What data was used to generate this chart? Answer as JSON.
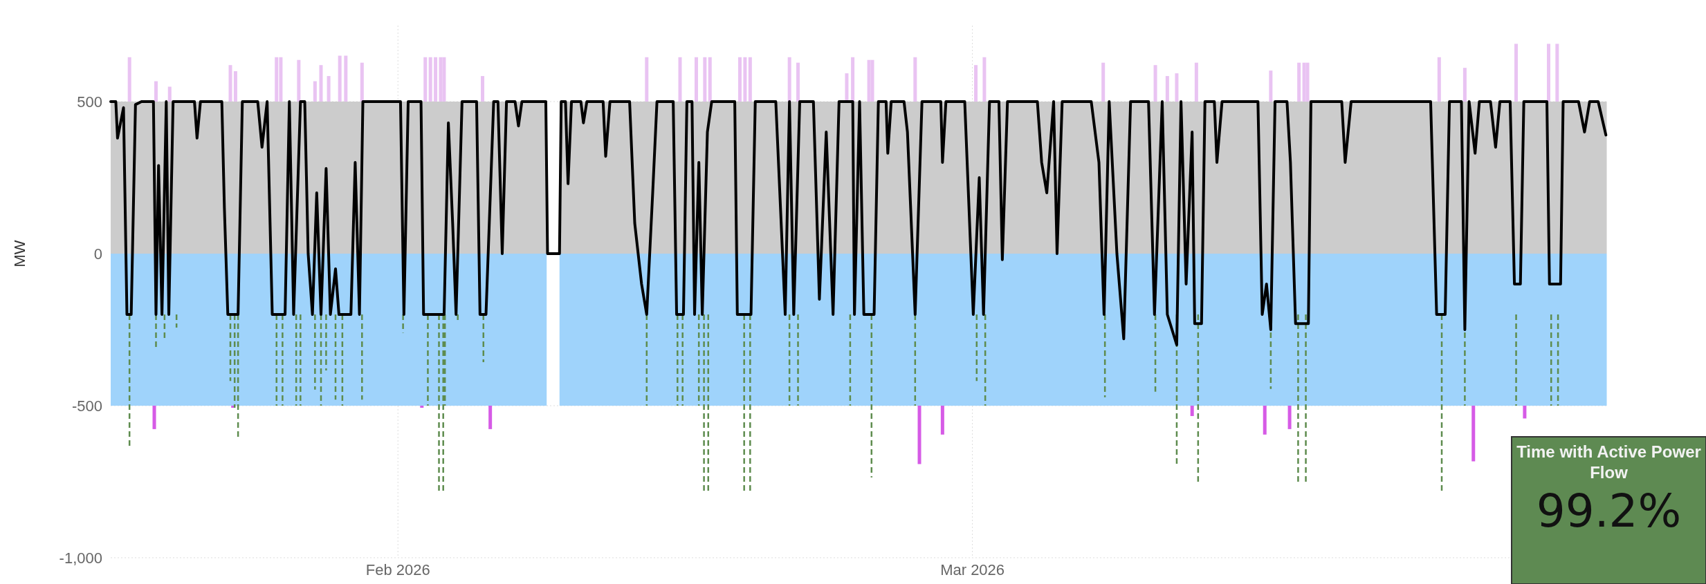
{
  "chart_data": [
    {
      "type": "line",
      "ylabel": "MW",
      "xlim": [
        "2026-01-18",
        "2026-04-01"
      ],
      "xticks": [
        {
          "value": "2026-02-01",
          "label": "Feb 2026"
        },
        {
          "value": "2026-03-01",
          "label": "Mar 2026"
        }
      ],
      "ylim": [
        -1000,
        750
      ],
      "yticks": [
        500,
        0,
        {
          "value": -500,
          "label": "-500"
        },
        {
          "value": -1000,
          "label": "-1,000"
        }
      ],
      "grid": true,
      "series": [
        {
          "type": "bar",
          "color": "#e9c3f2",
          "x": [
            "2026-01-18T22:00",
            "2026-01-20T05:00",
            "2026-01-20T21:00",
            "2026-01-23T20:00",
            "2026-01-24T02:00",
            "2026-01-26T02:00",
            "2026-01-26T07:00",
            "2026-01-27T04:00",
            "2026-01-27T23:00",
            "2026-01-28T06:00",
            "2026-01-28T15:00",
            "2026-01-29T04:00",
            "2026-01-29T11:00",
            "2026-01-30T06:00",
            "2026-02-02T08:00",
            "2026-02-02T14:00",
            "2026-02-02T20:00",
            "2026-02-03T02:00",
            "2026-02-03T06:00",
            "2026-02-05T03:00",
            "2026-02-13T03:00",
            "2026-02-14T18:00",
            "2026-02-15T13:00",
            "2026-02-15T23:00",
            "2026-02-16T05:00",
            "2026-02-17T16:00",
            "2026-02-17T22:00",
            "2026-02-18T04:00",
            "2026-02-20T02:00",
            "2026-02-20T12:00",
            "2026-02-22T21:00",
            "2026-02-23T04:00",
            "2026-02-23T23:00",
            "2026-02-24T03:00",
            "2026-02-26T05:00",
            "2026-03-01T04:00",
            "2026-03-01T14:00",
            "2026-03-07T09:00",
            "2026-03-09T22:00",
            "2026-03-10T12:00",
            "2026-03-10T23:00",
            "2026-03-11T22:00",
            "2026-03-15T13:00",
            "2026-03-16T22:00",
            "2026-03-17T04:00",
            "2026-03-17T08:00",
            "2026-03-23T18:00",
            "2026-03-25T00:00",
            "2026-03-27T12:00",
            "2026-03-29T02:00",
            "2026-03-29T12:00"
          ],
          "base": [
            500,
            500,
            500,
            500,
            500,
            500,
            500,
            500,
            500,
            500,
            500,
            500,
            500,
            500,
            500,
            500,
            500,
            500,
            500,
            500,
            500,
            500,
            500,
            500,
            500,
            500,
            500,
            500,
            500,
            500,
            500,
            500,
            500,
            500,
            500,
            500,
            500,
            500,
            500,
            500,
            500,
            500,
            500,
            500,
            500,
            500,
            500,
            500,
            500,
            500,
            500
          ],
          "values": [
            146,
            67,
            49,
            120,
            100,
            146,
            146,
            137,
            67,
            120,
            84,
            151,
            151,
            128,
            146,
            146,
            146,
            146,
            146,
            84,
            146,
            146,
            146,
            146,
            146,
            146,
            146,
            146,
            146,
            128,
            93,
            146,
            137,
            137,
            146,
            120,
            146,
            128,
            120,
            84,
            93,
            128,
            102,
            128,
            128,
            128,
            146,
            111,
            190,
            190,
            190
          ]
        },
        {
          "type": "bar",
          "color": "#d65be6",
          "x": [
            "2026-01-20T03:00",
            "2026-01-23T23:00",
            "2026-02-02T04:00",
            "2026-02-05T12:00",
            "2026-02-26T10:00",
            "2026-02-27T13:00",
            "2026-03-11T17:00",
            "2026-03-15T06:00",
            "2026-03-16T11:00",
            "2026-03-25T10:00",
            "2026-03-27T22:00"
          ],
          "base": [
            -500,
            -500,
            -500,
            -500,
            -500,
            -500,
            -500,
            -500,
            -500,
            -500,
            -500
          ],
          "values": [
            -77,
            -7,
            -7,
            -77,
            -192,
            -95,
            -34,
            -95,
            -77,
            -183,
            -42
          ]
        },
        {
          "type": "area",
          "color": "#cccccc",
          "x": [
            "2026-01-18T00:00",
            "2026-02-08T06:00",
            "2026-02-08T14:00",
            "2026-02-08T21:00",
            "2026-03-31T22:00"
          ],
          "values": [
            500,
            500,
            null,
            500,
            500
          ]
        },
        {
          "type": "area",
          "color": "#9fd3fb",
          "x": [
            "2026-01-18T00:00",
            "2026-02-08T06:00",
            "2026-02-08T14:00",
            "2026-02-08T21:00",
            "2026-03-31T22:00"
          ],
          "values": [
            -500,
            -500,
            null,
            -500,
            -500
          ]
        },
        {
          "type": "line",
          "color": "#5e8c4e",
          "line_style": "dashed",
          "x": [
            "2026-01-18T22:00",
            "2026-01-18T22:00",
            "2026-01-19T12:00",
            "2026-01-20T05:00",
            "2026-01-20T05:00",
            "2026-01-20T10:00",
            "2026-01-20T15:00",
            "2026-01-20T15:00",
            "2026-01-21T00:00",
            "2026-01-21T05:00",
            "2026-01-21T05:00",
            "2026-01-22T00:00",
            "2026-01-23T20:00",
            "2026-01-23T20:00",
            "2026-01-23T22:00",
            "2026-01-24T01:00",
            "2026-01-24T01:00",
            "2026-01-24T03:00",
            "2026-01-24T05:00",
            "2026-01-24T05:00",
            "2026-01-25T00:00",
            "2026-01-26T02:00",
            "2026-01-26T02:00",
            "2026-01-26T05:00",
            "2026-01-26T09:00",
            "2026-01-26T09:00",
            "2026-01-26T20:00",
            "2026-01-27T01:00",
            "2026-01-27T01:00",
            "2026-01-27T03:00",
            "2026-01-27T06:00",
            "2026-01-27T06:00",
            "2026-01-27T15:00",
            "2026-01-27T23:00",
            "2026-01-27T23:00",
            "2026-01-28T03:00",
            "2026-01-28T06:00",
            "2026-01-28T06:00",
            "2026-01-28T09:00",
            "2026-01-28T12:00",
            "2026-01-28T12:00",
            "2026-01-28T18:00",
            "2026-01-28T23:00",
            "2026-01-28T23:00",
            "2026-01-29T03:00",
            "2026-01-29T07:00",
            "2026-01-29T07:00",
            "2026-01-29T20:00",
            "2026-01-30T06:00",
            "2026-01-30T06:00",
            "2026-01-31T00:00",
            "2026-02-01T06:00",
            "2026-02-01T06:00",
            "2026-02-02T00:00",
            "2026-02-02T11:00",
            "2026-02-02T11:00",
            "2026-02-02T18:00",
            "2026-02-03T00:00",
            "2026-02-03T00:00",
            "2026-02-03T03:00",
            "2026-02-03T05:00",
            "2026-02-03T05:00",
            "2026-02-03T06:00",
            "2026-02-03T07:00",
            "2026-02-03T07:00",
            "2026-02-03T15:00",
            "2026-02-03T22:00",
            "2026-02-03T22:00",
            "2026-02-04T12:00",
            "2026-02-05T04:00",
            "2026-02-05T04:00",
            "2026-02-10T00:00",
            "2026-02-13T03:00",
            "2026-02-13T03:00",
            "2026-02-14T00:00",
            "2026-02-14T15:00",
            "2026-02-14T15:00",
            "2026-02-14T18:00",
            "2026-02-14T21:00",
            "2026-02-14T21:00",
            "2026-02-15T12:00",
            "2026-02-15T16:00",
            "2026-02-15T16:00",
            "2026-02-15T19:00",
            "2026-02-15T22:00",
            "2026-02-15T22:00",
            "2026-02-16T01:00",
            "2026-02-16T03:00",
            "2026-02-16T03:00",
            "2026-02-17T00:00",
            "2026-02-17T21:00",
            "2026-02-17T21:00",
            "2026-02-18T01:00",
            "2026-02-18T04:00",
            "2026-02-18T04:00",
            "2026-02-19T00:00",
            "2026-02-20T02:00",
            "2026-02-20T02:00",
            "2026-02-20T07:00",
            "2026-02-20T12:00",
            "2026-02-20T12:00",
            "2026-02-22T00:00",
            "2026-02-23T01:00",
            "2026-02-23T01:00",
            "2026-02-23T12:00",
            "2026-02-24T02:00",
            "2026-02-24T02:00",
            "2026-02-25T00:00",
            "2026-02-26T05:00",
            "2026-02-26T05:00",
            "2026-02-28T00:00",
            "2026-03-01T05:00",
            "2026-03-01T05:00",
            "2026-03-01T10:00",
            "2026-03-01T15:00",
            "2026-03-01T15:00",
            "2026-03-05T00:00",
            "2026-03-07T11:00",
            "2026-03-07T11:00",
            "2026-03-09T00:00",
            "2026-03-09T22:00",
            "2026-03-09T22:00",
            "2026-03-10T12:00",
            "2026-03-10T23:00",
            "2026-03-10T23:00",
            "2026-03-11T12:00",
            "2026-03-12T00:00",
            "2026-03-12T00:00",
            "2026-03-14T00:00",
            "2026-03-15T13:00",
            "2026-03-15T13:00",
            "2026-03-16T12:00",
            "2026-03-16T21:00",
            "2026-03-16T21:00",
            "2026-03-17T01:00",
            "2026-03-17T06:00",
            "2026-03-17T06:00",
            "2026-03-20T00:00",
            "2026-03-23T21:00",
            "2026-03-23T21:00",
            "2026-03-24T12:00",
            "2026-03-25T00:00",
            "2026-03-25T00:00",
            "2026-03-26T00:00",
            "2026-03-27T12:00",
            "2026-03-27T12:00",
            "2026-03-28T12:00",
            "2026-03-29T05:00",
            "2026-03-29T05:00",
            "2026-03-29T09:00",
            "2026-03-29T13:00",
            "2026-03-29T13:00"
          ],
          "values": [
            -200,
            -639,
            null,
            -200,
            -313,
            null,
            -200,
            -278,
            null,
            -200,
            -243,
            null,
            -200,
            -419,
            null,
            -200,
            -507,
            null,
            -200,
            -613,
            null,
            -200,
            -500,
            null,
            -200,
            -500,
            null,
            -200,
            -500,
            null,
            -200,
            -500,
            null,
            -200,
            -447,
            null,
            -200,
            -500,
            null,
            -200,
            -384,
            null,
            -200,
            -480,
            null,
            -200,
            -500,
            null,
            -200,
            -480,
            null,
            -200,
            -260,
            null,
            -200,
            -500,
            null,
            -200,
            -789,
            null,
            -200,
            -780,
            null,
            -200,
            -500,
            null,
            -200,
            -225,
            null,
            -200,
            -357,
            null,
            -200,
            -500,
            null,
            -200,
            -500,
            null,
            -200,
            -500,
            null,
            -200,
            -500,
            null,
            -200,
            -780,
            null,
            -200,
            -789,
            null,
            -200,
            -780,
            null,
            -200,
            -780,
            null,
            -200,
            -500,
            null,
            -200,
            -500,
            null,
            -200,
            -500,
            null,
            -200,
            -736,
            null,
            -200,
            -500,
            null,
            -200,
            -419,
            null,
            -200,
            -500,
            null,
            -200,
            -472,
            null,
            -200,
            -454,
            null,
            -200,
            -692,
            null,
            -200,
            -754,
            null,
            -200,
            -445,
            null,
            -200,
            -754,
            null,
            -200,
            -754,
            null,
            -200,
            -789,
            null,
            -200,
            -500,
            null,
            -200,
            -500,
            null,
            -200,
            -500,
            null,
            -200,
            -500
          ]
        },
        {
          "type": "line",
          "color": "#000000",
          "line_style": "solid",
          "x": [
            "2026-01-18T00:00",
            "2026-01-18T06:00",
            "2026-01-18T08:00",
            "2026-01-18T15:00",
            "2026-01-18T19:00",
            "2026-01-19T00:00",
            "2026-01-19T05:00",
            "2026-01-19T12:00",
            "2026-01-20T02:00",
            "2026-01-20T05:00",
            "2026-01-20T08:00",
            "2026-01-20T12:00",
            "2026-01-20T17:00",
            "2026-01-20T20:00",
            "2026-01-21T01:00",
            "2026-01-22T02:00",
            "2026-01-22T05:00",
            "2026-01-22T09:00",
            "2026-01-23T10:00",
            "2026-01-23T13:00",
            "2026-01-23T17:00",
            "2026-01-24T05:00",
            "2026-01-24T10:00",
            "2026-01-25T04:00",
            "2026-01-25T09:00",
            "2026-01-25T15:00",
            "2026-01-25T21:00",
            "2026-01-26T12:00",
            "2026-01-26T17:00",
            "2026-01-26T22:00",
            "2026-01-27T06:00",
            "2026-01-27T11:00",
            "2026-01-27T15:00",
            "2026-01-27T20:00",
            "2026-01-28T01:00",
            "2026-01-28T06:00",
            "2026-01-28T12:00",
            "2026-01-28T17:00",
            "2026-01-28T23:00",
            "2026-01-29T03:00",
            "2026-01-29T17:00",
            "2026-01-29T22:00",
            "2026-01-30T03:00",
            "2026-01-30T07:00",
            "2026-02-01T03:00",
            "2026-02-01T07:00",
            "2026-02-01T12:00",
            "2026-02-02T03:00",
            "2026-02-02T06:00",
            "2026-02-03T06:00",
            "2026-02-03T11:00",
            "2026-02-03T16:00",
            "2026-02-03T20:00",
            "2026-02-04T03:00",
            "2026-02-04T20:00",
            "2026-02-05T00:00",
            "2026-02-05T07:00",
            "2026-02-05T16:00",
            "2026-02-05T21:00",
            "2026-02-06T02:00",
            "2026-02-06T07:00",
            "2026-02-06T17:00",
            "2026-02-06T21:00",
            "2026-02-07T01:00",
            "2026-02-08T05:00",
            "2026-02-08T07:00",
            "2026-02-08T21:00",
            "2026-02-08T23:00",
            "2026-02-09T04:00",
            "2026-02-09T07:00",
            "2026-02-09T11:00",
            "2026-02-09T22:00",
            "2026-02-10T01:00",
            "2026-02-10T05:00",
            "2026-02-11T00:00",
            "2026-02-11T03:00",
            "2026-02-11T08:00",
            "2026-02-12T07:00",
            "2026-02-12T13:00",
            "2026-02-12T21:00",
            "2026-02-13T03:00",
            "2026-02-13T10:00",
            "2026-02-13T15:00",
            "2026-02-14T10:00",
            "2026-02-14T14:00",
            "2026-02-14T22:00",
            "2026-02-15T02:00",
            "2026-02-15T08:00",
            "2026-02-15T11:00",
            "2026-02-15T16:00",
            "2026-02-15T20:00",
            "2026-02-16T02:00",
            "2026-02-16T07:00",
            "2026-02-17T10:00",
            "2026-02-17T13:00",
            "2026-02-18T05:00",
            "2026-02-18T10:00",
            "2026-02-19T10:00",
            "2026-02-19T21:00",
            "2026-02-20T02:00",
            "2026-02-20T07:00",
            "2026-02-20T14:00",
            "2026-02-21T06:00",
            "2026-02-21T13:00",
            "2026-02-21T21:00",
            "2026-02-22T05:00",
            "2026-02-22T12:00",
            "2026-02-23T04:00",
            "2026-02-23T06:00",
            "2026-02-23T12:00",
            "2026-02-23T17:00",
            "2026-02-24T05:00",
            "2026-02-24T10:00",
            "2026-02-24T19:00",
            "2026-02-24T21:00",
            "2026-02-25T01:00",
            "2026-02-25T16:00",
            "2026-02-25T20:00",
            "2026-02-26T05:00",
            "2026-02-26T13:00",
            "2026-02-27T11:00",
            "2026-02-27T13:00",
            "2026-02-27T17:00",
            "2026-02-28T15:00",
            "2026-03-01T01:00",
            "2026-03-01T08:00",
            "2026-03-01T13:00",
            "2026-03-01T20:00",
            "2026-03-02T07:00",
            "2026-03-02T11:00",
            "2026-03-02T17:00",
            "2026-03-04T04:00",
            "2026-03-04T09:00",
            "2026-03-04T15:00",
            "2026-03-04T23:00",
            "2026-03-05T03:00",
            "2026-03-05T09:00",
            "2026-03-06T19:00",
            "2026-03-07T04:00",
            "2026-03-07T10:00",
            "2026-03-07T16:00",
            "2026-03-08T01:00",
            "2026-03-08T09:00",
            "2026-03-08T17:00",
            "2026-03-09T14:00",
            "2026-03-09T21:00",
            "2026-03-10T06:00",
            "2026-03-10T12:00",
            "2026-03-10T23:00",
            "2026-03-11T04:00",
            "2026-03-11T10:00",
            "2026-03-11T17:00",
            "2026-03-11T20:00",
            "2026-03-12T04:00",
            "2026-03-12T08:00",
            "2026-03-12T19:00",
            "2026-03-12T22:00",
            "2026-03-13T04:00",
            "2026-03-14T22:00",
            "2026-03-15T03:00",
            "2026-03-15T08:00",
            "2026-03-15T13:00",
            "2026-03-15T18:00",
            "2026-03-16T08:00",
            "2026-03-16T12:00",
            "2026-03-16T18:00",
            "2026-03-17T09:00",
            "2026-03-17T12:00",
            "2026-03-19T00:00",
            "2026-03-19T04:00",
            "2026-03-19T11:00",
            "2026-03-23T08:00",
            "2026-03-23T15:00",
            "2026-03-24T01:00",
            "2026-03-24T06:00",
            "2026-03-24T20:00",
            "2026-03-25T00:00",
            "2026-03-25T05:00",
            "2026-03-25T12:00",
            "2026-03-25T17:00",
            "2026-03-26T06:00",
            "2026-03-26T12:00",
            "2026-03-26T17:00",
            "2026-03-27T05:00",
            "2026-03-27T10:00",
            "2026-03-27T17:00",
            "2026-03-27T21:00",
            "2026-03-29T00:00",
            "2026-03-29T03:00",
            "2026-03-29T16:00",
            "2026-03-29T19:00",
            "2026-03-30T13:00",
            "2026-03-30T20:00",
            "2026-03-31T02:00",
            "2026-03-31T12:00",
            "2026-03-31T21:00"
          ],
          "values": [
            500,
            500,
            380,
            480,
            -200,
            -200,
            490,
            500,
            500,
            -200,
            290,
            -200,
            500,
            -200,
            500,
            500,
            380,
            500,
            500,
            150,
            -200,
            -200,
            500,
            500,
            350,
            500,
            -200,
            -200,
            500,
            -200,
            500,
            500,
            0,
            -200,
            200,
            -200,
            280,
            -200,
            -50,
            -200,
            -200,
            300,
            -200,
            500,
            500,
            -200,
            500,
            500,
            -200,
            -200,
            430,
            100,
            -200,
            500,
            500,
            -200,
            -200,
            500,
            500,
            0,
            500,
            500,
            420,
            500,
            500,
            0,
            0,
            500,
            500,
            230,
            500,
            500,
            430,
            500,
            500,
            320,
            500,
            500,
            100,
            -100,
            -200,
            200,
            500,
            500,
            -200,
            -200,
            500,
            500,
            -200,
            300,
            -200,
            400,
            500,
            500,
            -200,
            -200,
            500,
            500,
            -200,
            500,
            -200,
            500,
            500,
            -150,
            400,
            -200,
            500,
            500,
            -200,
            500,
            -200,
            -200,
            500,
            500,
            330,
            500,
            500,
            400,
            -200,
            500,
            500,
            300,
            500,
            500,
            -200,
            250,
            -200,
            500,
            500,
            -20,
            500,
            500,
            300,
            200,
            500,
            0,
            500,
            500,
            300,
            -200,
            500,
            0,
            -280,
            500,
            500,
            -200,
            500,
            -200,
            -300,
            500,
            -100,
            400,
            -230,
            -230,
            500,
            500,
            300,
            500,
            500,
            -200,
            -100,
            -250,
            500,
            500,
            300,
            -230,
            -230,
            500,
            500,
            300,
            500,
            500,
            -200,
            -200,
            500,
            500,
            -250,
            500,
            330,
            500,
            500,
            350,
            500,
            500,
            -100,
            -100,
            500,
            500,
            -100,
            -100,
            500,
            500,
            400,
            500,
            500,
            390
          ]
        }
      ]
    },
    {
      "type": "other",
      "title": "Time with Active Power Flow",
      "annotations": [
        "99.2%"
      ]
    }
  ]
}
